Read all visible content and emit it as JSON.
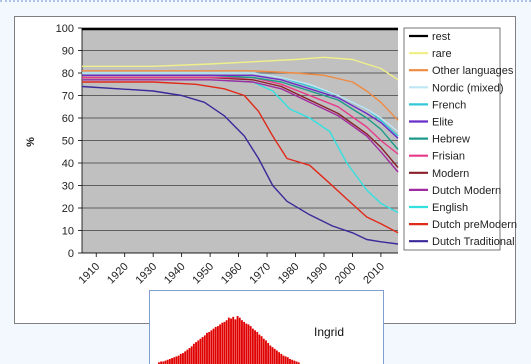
{
  "chart_data": {
    "type": "line",
    "ylabel": "%",
    "ylim": [
      0,
      100
    ],
    "yticks": [
      0,
      10,
      20,
      30,
      40,
      50,
      60,
      70,
      80,
      90,
      100
    ],
    "xlim": [
      1905,
      2016
    ],
    "xticks": [
      1910,
      1920,
      1930,
      1940,
      1950,
      1960,
      1970,
      1980,
      1990,
      2000,
      2010
    ],
    "grid": true,
    "legend_position": "right",
    "series": [
      {
        "name": "rest",
        "color": "#000000",
        "points": [
          [
            1905,
            99.5
          ],
          [
            1950,
            99.5
          ],
          [
            1980,
            99.5
          ],
          [
            2000,
            99.5
          ],
          [
            2016,
            99.5
          ]
        ]
      },
      {
        "name": "rare",
        "color": "#f0f08a",
        "points": [
          [
            1905,
            83
          ],
          [
            1930,
            83
          ],
          [
            1950,
            84
          ],
          [
            1965,
            85
          ],
          [
            1980,
            86
          ],
          [
            1990,
            87
          ],
          [
            2000,
            86
          ],
          [
            2005,
            84
          ],
          [
            2010,
            82
          ],
          [
            2016,
            77
          ]
        ]
      },
      {
        "name": "Other languages",
        "color": "#f08a40",
        "points": [
          [
            1905,
            81
          ],
          [
            1930,
            81
          ],
          [
            1950,
            81
          ],
          [
            1965,
            81
          ],
          [
            1980,
            80
          ],
          [
            1990,
            79
          ],
          [
            2000,
            76
          ],
          [
            2005,
            72
          ],
          [
            2010,
            67
          ],
          [
            2016,
            59
          ]
        ]
      },
      {
        "name": "Nordic (mixed)",
        "color": "#bfe6f4",
        "points": [
          [
            1905,
            80
          ],
          [
            1930,
            80
          ],
          [
            1950,
            80
          ],
          [
            1965,
            80
          ],
          [
            1975,
            78
          ],
          [
            1985,
            75
          ],
          [
            1995,
            70
          ],
          [
            2005,
            64
          ],
          [
            2010,
            60
          ],
          [
            2016,
            54
          ]
        ]
      },
      {
        "name": "French",
        "color": "#33c8d8",
        "points": [
          [
            1905,
            80
          ],
          [
            1930,
            80
          ],
          [
            1950,
            80
          ],
          [
            1965,
            80
          ],
          [
            1975,
            78
          ],
          [
            1985,
            74
          ],
          [
            1995,
            70
          ],
          [
            2005,
            64
          ],
          [
            2010,
            59
          ],
          [
            2016,
            52
          ]
        ]
      },
      {
        "name": "Elite",
        "color": "#6a2fc8",
        "points": [
          [
            1905,
            79
          ],
          [
            1930,
            79
          ],
          [
            1950,
            79
          ],
          [
            1965,
            79
          ],
          [
            1975,
            77
          ],
          [
            1985,
            73
          ],
          [
            1995,
            69
          ],
          [
            2005,
            62
          ],
          [
            2010,
            58
          ],
          [
            2016,
            51
          ]
        ]
      },
      {
        "name": "Hebrew",
        "color": "#1f9a8a",
        "points": [
          [
            1905,
            79
          ],
          [
            1930,
            79
          ],
          [
            1950,
            79
          ],
          [
            1965,
            78
          ],
          [
            1975,
            76
          ],
          [
            1985,
            72
          ],
          [
            1995,
            68
          ],
          [
            2005,
            60
          ],
          [
            2010,
            55
          ],
          [
            2016,
            46
          ]
        ]
      },
      {
        "name": "Frisian",
        "color": "#e83a8a",
        "points": [
          [
            1905,
            78
          ],
          [
            1930,
            78
          ],
          [
            1950,
            78
          ],
          [
            1965,
            78
          ],
          [
            1975,
            75
          ],
          [
            1985,
            70
          ],
          [
            1995,
            65
          ],
          [
            2005,
            56
          ],
          [
            2010,
            50
          ],
          [
            2016,
            44
          ]
        ]
      },
      {
        "name": "Modern",
        "color": "#8a1f2a",
        "points": [
          [
            1905,
            78
          ],
          [
            1930,
            78
          ],
          [
            1950,
            78
          ],
          [
            1965,
            77
          ],
          [
            1975,
            74
          ],
          [
            1985,
            68
          ],
          [
            1995,
            62
          ],
          [
            2005,
            53
          ],
          [
            2010,
            47
          ],
          [
            2016,
            38
          ]
        ]
      },
      {
        "name": "Dutch Modern",
        "color": "#a02aa0",
        "points": [
          [
            1905,
            77
          ],
          [
            1930,
            77
          ],
          [
            1950,
            77
          ],
          [
            1965,
            76
          ],
          [
            1975,
            73
          ],
          [
            1985,
            67
          ],
          [
            1995,
            61
          ],
          [
            2005,
            52
          ],
          [
            2010,
            45
          ],
          [
            2016,
            36
          ]
        ]
      },
      {
        "name": "English",
        "color": "#33e0e0",
        "points": [
          [
            1905,
            77
          ],
          [
            1930,
            77
          ],
          [
            1950,
            77
          ],
          [
            1965,
            76
          ],
          [
            1972,
            72
          ],
          [
            1978,
            64
          ],
          [
            1985,
            60
          ],
          [
            1992,
            54
          ],
          [
            1998,
            40
          ],
          [
            2005,
            28
          ],
          [
            2010,
            22
          ],
          [
            2016,
            18
          ]
        ]
      },
      {
        "name": "Dutch preModern",
        "color": "#e02a1a",
        "points": [
          [
            1905,
            76
          ],
          [
            1930,
            76
          ],
          [
            1945,
            75
          ],
          [
            1955,
            73
          ],
          [
            1962,
            70
          ],
          [
            1967,
            63
          ],
          [
            1972,
            52
          ],
          [
            1977,
            42
          ],
          [
            1985,
            39
          ],
          [
            1992,
            31
          ],
          [
            1998,
            24
          ],
          [
            2005,
            16
          ],
          [
            2010,
            13
          ],
          [
            2016,
            9
          ]
        ]
      },
      {
        "name": "Dutch Traditional",
        "color": "#3a2a9a",
        "points": [
          [
            1905,
            74
          ],
          [
            1930,
            72
          ],
          [
            1940,
            70
          ],
          [
            1948,
            67
          ],
          [
            1955,
            61
          ],
          [
            1962,
            52
          ],
          [
            1967,
            42
          ],
          [
            1972,
            30
          ],
          [
            1977,
            23
          ],
          [
            1985,
            17
          ],
          [
            1993,
            12
          ],
          [
            2000,
            9
          ],
          [
            2005,
            6
          ],
          [
            2010,
            5
          ],
          [
            2016,
            4
          ]
        ]
      }
    ]
  },
  "inset": {
    "label": "Ingrid",
    "bar_color": "#e00000",
    "bin_values": [
      2,
      3,
      3,
      4,
      5,
      6,
      7,
      8,
      9,
      10,
      12,
      13,
      15,
      17,
      19,
      21,
      24,
      26,
      28,
      30,
      32,
      34,
      37,
      38,
      40,
      42,
      44,
      45,
      47,
      49,
      50,
      52,
      55,
      54,
      56,
      53,
      57,
      55,
      52,
      50,
      48,
      47,
      45,
      42,
      40,
      38,
      35,
      33,
      30,
      28,
      25,
      22,
      20,
      18,
      16,
      14,
      12,
      10,
      9,
      8,
      6,
      5,
      4,
      3,
      2
    ]
  }
}
